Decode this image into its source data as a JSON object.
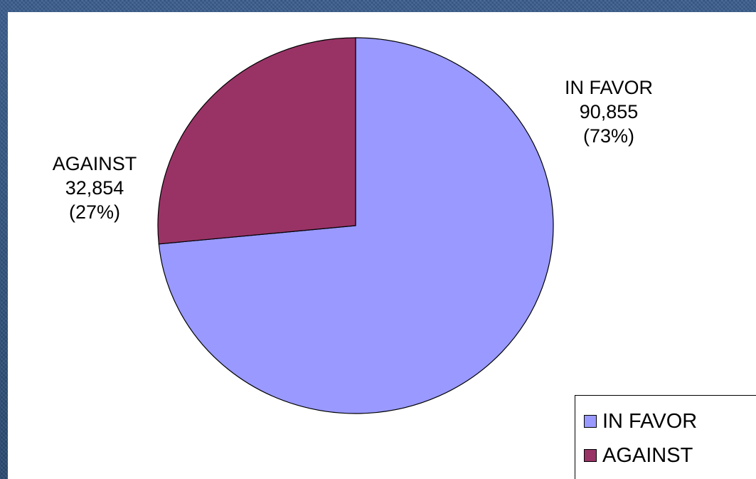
{
  "chart_data": {
    "type": "pie",
    "slices": [
      {
        "label": "IN FAVOR",
        "value": 90855,
        "value_text": "90,855",
        "percent_text": "(73%)",
        "color": "#9999ff"
      },
      {
        "label": "AGAINST",
        "value": 32854,
        "value_text": "32,854",
        "percent_text": "(27%)",
        "color": "#993366"
      }
    ],
    "start_angle_deg": 0,
    "direction": "clockwise",
    "legend": {
      "placement": "bottom-right",
      "entries": [
        "IN FAVOR",
        "AGAINST"
      ]
    }
  }
}
